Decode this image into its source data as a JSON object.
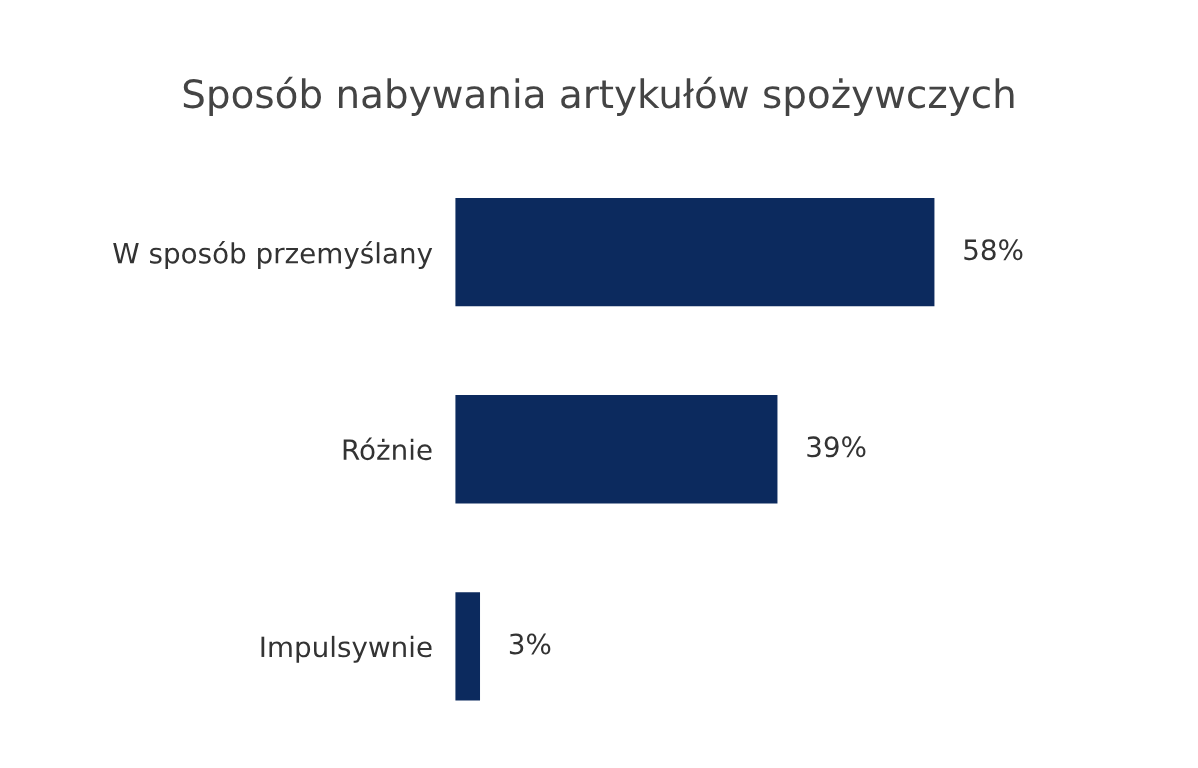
{
  "chart_data": {
    "type": "bar",
    "orientation": "horizontal",
    "title": "Sposób nabywania artykułów spożywczych",
    "categories": [
      "W sposób przemyślany",
      "Różnie",
      "Impulsywnie"
    ],
    "values": [
      58,
      39,
      3
    ],
    "value_labels": [
      "58%",
      "39%",
      "3%"
    ],
    "color": "#0c2a5e",
    "grid": false,
    "legend": false
  }
}
